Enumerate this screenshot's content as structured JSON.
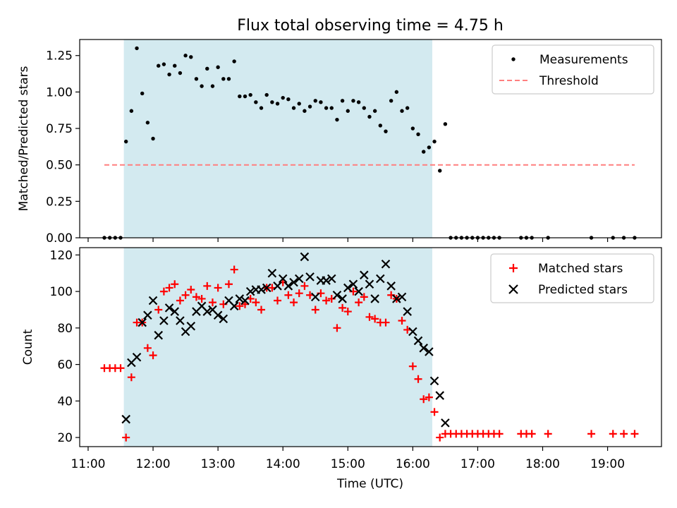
{
  "title": "Flux total observing time = 4.75 h",
  "colors": {
    "shade": "#d3eaf0",
    "threshold": "#ff7f7f",
    "matched": "#ff0000",
    "predicted": "#000000",
    "measurement": "#000000"
  },
  "chart_data": [
    {
      "type": "scatter",
      "ylabel": "Matched/Predicted stars",
      "xlim_hours": [
        10.87,
        19.83
      ],
      "ylim": [
        0,
        1.36
      ],
      "yticks": [
        0,
        0.25,
        0.5,
        0.75,
        1.0,
        1.25
      ],
      "ytick_labels": [
        "0.00",
        "0.25",
        "0.50",
        "0.75",
        "1.00",
        "1.25"
      ],
      "shaded_span": [
        "11:33",
        "16:18"
      ],
      "legend": {
        "placement": "top-right",
        "measurements_label": "Measurements",
        "threshold_label": "Threshold"
      },
      "threshold": {
        "y": 0.5,
        "x_from": "11:15",
        "x_to": "19:25"
      },
      "measurements": [
        [
          "11:15",
          0.0
        ],
        [
          "11:20",
          0.0
        ],
        [
          "11:25",
          0.0
        ],
        [
          "11:30",
          0.0
        ],
        [
          "11:35",
          0.66
        ],
        [
          "11:40",
          0.87
        ],
        [
          "11:45",
          1.3
        ],
        [
          "11:50",
          0.99
        ],
        [
          "11:55",
          0.79
        ],
        [
          "12:00",
          0.68
        ],
        [
          "12:05",
          1.18
        ],
        [
          "12:10",
          1.19
        ],
        [
          "12:15",
          1.12
        ],
        [
          "12:20",
          1.18
        ],
        [
          "12:25",
          1.13
        ],
        [
          "12:30",
          1.25
        ],
        [
          "12:35",
          1.24
        ],
        [
          "12:40",
          1.09
        ],
        [
          "12:45",
          1.04
        ],
        [
          "12:50",
          1.16
        ],
        [
          "12:55",
          1.04
        ],
        [
          "13:00",
          1.17
        ],
        [
          "13:05",
          1.09
        ],
        [
          "13:10",
          1.09
        ],
        [
          "13:15",
          1.21
        ],
        [
          "13:20",
          0.97
        ],
        [
          "13:25",
          0.97
        ],
        [
          "13:30",
          0.98
        ],
        [
          "13:35",
          0.93
        ],
        [
          "13:40",
          0.89
        ],
        [
          "13:45",
          0.98
        ],
        [
          "13:50",
          0.93
        ],
        [
          "13:55",
          0.92
        ],
        [
          "14:00",
          0.96
        ],
        [
          "14:05",
          0.95
        ],
        [
          "14:10",
          0.89
        ],
        [
          "14:15",
          0.92
        ],
        [
          "14:20",
          0.87
        ],
        [
          "14:25",
          0.9
        ],
        [
          "14:30",
          0.94
        ],
        [
          "14:35",
          0.93
        ],
        [
          "14:40",
          0.89
        ],
        [
          "14:45",
          0.89
        ],
        [
          "14:50",
          0.81
        ],
        [
          "14:55",
          0.94
        ],
        [
          "15:00",
          0.87
        ],
        [
          "15:05",
          0.94
        ],
        [
          "15:10",
          0.93
        ],
        [
          "15:15",
          0.89
        ],
        [
          "15:20",
          0.83
        ],
        [
          "15:25",
          0.87
        ],
        [
          "15:30",
          0.77
        ],
        [
          "15:35",
          0.73
        ],
        [
          "15:40",
          0.94
        ],
        [
          "15:45",
          1.0
        ],
        [
          "15:50",
          0.87
        ],
        [
          "15:55",
          0.89
        ],
        [
          "16:00",
          0.75
        ],
        [
          "16:05",
          0.71
        ],
        [
          "16:10",
          0.59
        ],
        [
          "16:15",
          0.62
        ],
        [
          "16:20",
          0.66
        ],
        [
          "16:25",
          0.46
        ],
        [
          "16:30",
          0.78
        ],
        [
          "16:35",
          0.0
        ],
        [
          "16:40",
          0.0
        ],
        [
          "16:45",
          0.0
        ],
        [
          "16:50",
          0.0
        ],
        [
          "16:55",
          0.0
        ],
        [
          "17:00",
          0.0
        ],
        [
          "17:05",
          0.0
        ],
        [
          "17:10",
          0.0
        ],
        [
          "17:15",
          0.0
        ],
        [
          "17:20",
          0.0
        ],
        [
          "17:40",
          0.0
        ],
        [
          "17:45",
          0.0
        ],
        [
          "17:50",
          0.0
        ],
        [
          "18:05",
          0.0
        ],
        [
          "18:45",
          0.0
        ],
        [
          "19:05",
          0.0
        ],
        [
          "19:15",
          0.0
        ],
        [
          "19:25",
          0.0
        ]
      ]
    },
    {
      "type": "scatter",
      "xlabel": "Time (UTC)",
      "ylabel": "Count",
      "xlim_hours": [
        10.87,
        19.83
      ],
      "ylim": [
        15,
        124
      ],
      "yticks": [
        20,
        40,
        60,
        80,
        100,
        120
      ],
      "ytick_labels": [
        "20",
        "40",
        "60",
        "80",
        "100",
        "120"
      ],
      "xticks": [
        "11:00",
        "12:00",
        "13:00",
        "14:00",
        "15:00",
        "16:00",
        "17:00",
        "18:00",
        "19:00"
      ],
      "shaded_span": [
        "11:33",
        "16:18"
      ],
      "legend": {
        "placement": "top-right",
        "matched_label": "Matched stars",
        "predicted_label": "Predicted stars"
      },
      "series": [
        {
          "name": "Matched stars",
          "points": [
            [
              "11:15",
              58
            ],
            [
              "11:20",
              58
            ],
            [
              "11:25",
              58
            ],
            [
              "11:30",
              58
            ],
            [
              "11:35",
              20
            ],
            [
              "11:40",
              53
            ],
            [
              "11:45",
              83
            ],
            [
              "11:50",
              83
            ],
            [
              "11:55",
              69
            ],
            [
              "12:00",
              65
            ],
            [
              "12:05",
              90
            ],
            [
              "12:10",
              100
            ],
            [
              "12:15",
              102
            ],
            [
              "12:20",
              104
            ],
            [
              "12:25",
              95
            ],
            [
              "12:30",
              98
            ],
            [
              "12:35",
              101
            ],
            [
              "12:40",
              97
            ],
            [
              "12:45",
              96
            ],
            [
              "12:50",
              103
            ],
            [
              "12:55",
              94
            ],
            [
              "13:00",
              102
            ],
            [
              "13:05",
              93
            ],
            [
              "13:10",
              104
            ],
            [
              "13:15",
              112
            ],
            [
              "13:20",
              92
            ],
            [
              "13:25",
              93
            ],
            [
              "13:30",
              96
            ],
            [
              "13:35",
              94
            ],
            [
              "13:40",
              90
            ],
            [
              "13:45",
              102
            ],
            [
              "13:50",
              102
            ],
            [
              "13:55",
              95
            ],
            [
              "14:00",
              105
            ],
            [
              "14:05",
              98
            ],
            [
              "14:10",
              94
            ],
            [
              "14:15",
              99
            ],
            [
              "14:20",
              103
            ],
            [
              "14:25",
              98
            ],
            [
              "14:30",
              90
            ],
            [
              "14:35",
              99
            ],
            [
              "14:40",
              95
            ],
            [
              "14:45",
              96
            ],
            [
              "14:50",
              80
            ],
            [
              "14:55",
              91
            ],
            [
              "15:00",
              89
            ],
            [
              "15:05",
              100
            ],
            [
              "15:10",
              94
            ],
            [
              "15:15",
              97
            ],
            [
              "15:20",
              86
            ],
            [
              "15:25",
              85
            ],
            [
              "15:30",
              83
            ],
            [
              "15:35",
              83
            ],
            [
              "15:40",
              98
            ],
            [
              "15:45",
              96
            ],
            [
              "15:50",
              84
            ],
            [
              "15:55",
              79
            ],
            [
              "16:00",
              59
            ],
            [
              "16:05",
              52
            ],
            [
              "16:10",
              41
            ],
            [
              "16:15",
              42
            ],
            [
              "16:20",
              34
            ],
            [
              "16:25",
              20
            ],
            [
              "16:30",
              22
            ],
            [
              "16:35",
              22
            ],
            [
              "16:40",
              22
            ],
            [
              "16:45",
              22
            ],
            [
              "16:50",
              22
            ],
            [
              "16:55",
              22
            ],
            [
              "17:00",
              22
            ],
            [
              "17:05",
              22
            ],
            [
              "17:10",
              22
            ],
            [
              "17:15",
              22
            ],
            [
              "17:20",
              22
            ],
            [
              "17:40",
              22
            ],
            [
              "17:45",
              22
            ],
            [
              "17:50",
              22
            ],
            [
              "18:05",
              22
            ],
            [
              "18:45",
              22
            ],
            [
              "19:05",
              22
            ],
            [
              "19:15",
              22
            ],
            [
              "19:25",
              22
            ]
          ]
        },
        {
          "name": "Predicted stars",
          "points": [
            [
              "11:35",
              30
            ],
            [
              "11:40",
              61
            ],
            [
              "11:45",
              64
            ],
            [
              "11:50",
              83
            ],
            [
              "11:55",
              87
            ],
            [
              "12:00",
              95
            ],
            [
              "12:05",
              76
            ],
            [
              "12:10",
              84
            ],
            [
              "12:15",
              91
            ],
            [
              "12:20",
              89
            ],
            [
              "12:25",
              84
            ],
            [
              "12:30",
              78
            ],
            [
              "12:35",
              81
            ],
            [
              "12:40",
              89
            ],
            [
              "12:45",
              92
            ],
            [
              "12:50",
              89
            ],
            [
              "12:55",
              90
            ],
            [
              "13:00",
              87
            ],
            [
              "13:05",
              85
            ],
            [
              "13:10",
              95
            ],
            [
              "13:15",
              92
            ],
            [
              "13:20",
              96
            ],
            [
              "13:25",
              95
            ],
            [
              "13:30",
              100
            ],
            [
              "13:35",
              101
            ],
            [
              "13:40",
              101
            ],
            [
              "13:45",
              102
            ],
            [
              "13:50",
              110
            ],
            [
              "13:55",
              103
            ],
            [
              "14:00",
              107
            ],
            [
              "14:05",
              103
            ],
            [
              "14:10",
              105
            ],
            [
              "14:15",
              107
            ],
            [
              "14:20",
              119
            ],
            [
              "14:25",
              108
            ],
            [
              "14:30",
              97
            ],
            [
              "14:35",
              106
            ],
            [
              "14:40",
              106
            ],
            [
              "14:45",
              107
            ],
            [
              "14:50",
              98
            ],
            [
              "14:55",
              96
            ],
            [
              "15:00",
              102
            ],
            [
              "15:05",
              104
            ],
            [
              "15:10",
              100
            ],
            [
              "15:15",
              109
            ],
            [
              "15:20",
              104
            ],
            [
              "15:25",
              96
            ],
            [
              "15:30",
              107
            ],
            [
              "15:35",
              115
            ],
            [
              "15:40",
              103
            ],
            [
              "15:45",
              96
            ],
            [
              "15:50",
              97
            ],
            [
              "15:55",
              89
            ],
            [
              "16:00",
              78
            ],
            [
              "16:05",
              73
            ],
            [
              "16:10",
              69
            ],
            [
              "16:15",
              67
            ],
            [
              "16:20",
              51
            ],
            [
              "16:25",
              43
            ],
            [
              "16:30",
              28
            ]
          ]
        }
      ]
    }
  ]
}
